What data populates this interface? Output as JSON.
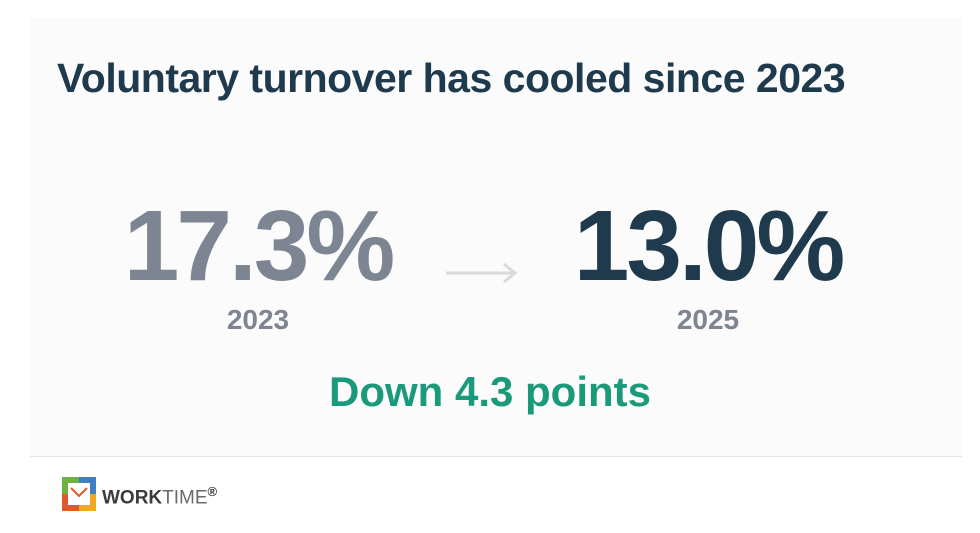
{
  "header": {
    "title": "Voluntary turnover has cooled since 2023"
  },
  "stats": [
    {
      "value": "17.3%",
      "label": "2023"
    },
    {
      "value": "13.0%",
      "label": "2025"
    }
  ],
  "summary": "Down 4.3 points",
  "footer": {
    "brand_bold": "WORK",
    "brand_light": "TIME",
    "mark": "®"
  }
}
